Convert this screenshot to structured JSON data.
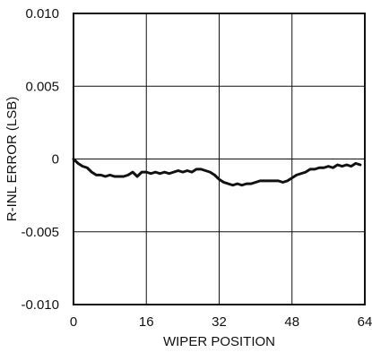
{
  "chart_data": {
    "type": "line",
    "title": "",
    "xlabel": "WIPER POSITION",
    "ylabel": "R-INL ERROR (LSB)",
    "xlim": [
      0,
      64
    ],
    "ylim": [
      -0.01,
      0.01
    ],
    "grid": true,
    "x_ticks": [
      0,
      16,
      32,
      48,
      64
    ],
    "x_tick_labels": [
      "0",
      "16",
      "32",
      "48",
      "64"
    ],
    "y_ticks": [
      0.01,
      0.005,
      0,
      -0.005,
      -0.01
    ],
    "y_tick_labels": [
      "0.010",
      "0.005",
      "0",
      "-0.005",
      "-0.010"
    ],
    "series": [
      {
        "x": [
          0,
          1,
          2,
          3,
          4,
          5,
          6,
          7,
          8,
          9,
          10,
          11,
          12,
          13,
          14,
          15,
          16,
          17,
          18,
          19,
          20,
          21,
          22,
          23,
          24,
          25,
          26,
          27,
          28,
          29,
          30,
          31,
          32,
          33,
          34,
          35,
          36,
          37,
          38,
          39,
          40,
          41,
          42,
          43,
          44,
          45,
          46,
          47,
          48,
          49,
          50,
          51,
          52,
          53,
          54,
          55,
          56,
          57,
          58,
          59,
          60,
          61,
          62,
          63
        ],
        "values": [
          0.0,
          -0.0003,
          -0.0005,
          -0.0006,
          -0.0009,
          -0.0011,
          -0.0011,
          -0.0012,
          -0.0011,
          -0.0012,
          -0.0012,
          -0.0012,
          -0.0011,
          -0.0009,
          -0.0012,
          -0.0009,
          -0.0009,
          -0.001,
          -0.0009,
          -0.001,
          -0.0009,
          -0.001,
          -0.0009,
          -0.0008,
          -0.0009,
          -0.0008,
          -0.0009,
          -0.0007,
          -0.0007,
          -0.0008,
          -0.0009,
          -0.0011,
          -0.0014,
          -0.0016,
          -0.0017,
          -0.0018,
          -0.0017,
          -0.0018,
          -0.0017,
          -0.0017,
          -0.0016,
          -0.0015,
          -0.0015,
          -0.0015,
          -0.0015,
          -0.0015,
          -0.0016,
          -0.0015,
          -0.0013,
          -0.0011,
          -0.001,
          -0.0009,
          -0.0007,
          -0.0007,
          -0.0006,
          -0.0006,
          -0.0005,
          -0.0006,
          -0.0004,
          -0.0005,
          -0.0004,
          -0.0005,
          -0.0003,
          -0.0004
        ]
      }
    ]
  }
}
